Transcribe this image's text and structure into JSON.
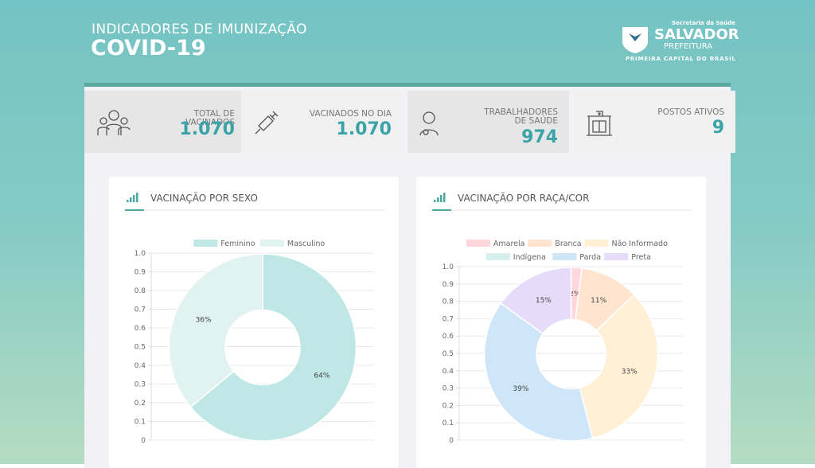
{
  "header": {
    "title": "INDICADORES DE IMUNIZAÇÃO",
    "subtitle": "COVID-19"
  },
  "logo": {
    "department": "Secretaria da Saúde",
    "city": "SALVADOR",
    "office": "PREFEITURA",
    "tagline": "PRIMEIRA CAPITAL DO BRASIL"
  },
  "cards": [
    {
      "label": "TOTAL DE VACINADOS",
      "value": "1.070"
    },
    {
      "label": "VACINADOS NO DIA",
      "value": "1.070"
    },
    {
      "label": "TRABALHADORES DE SAÚDE",
      "value": "974"
    },
    {
      "label": "POSTOS ATIVOS",
      "value": "9"
    }
  ],
  "chart_data": [
    {
      "type": "doughnut",
      "title": "VACINAÇÃO POR SEXO",
      "categories": [
        "Feminino",
        "Masculino"
      ],
      "values": [
        64,
        36
      ],
      "value_labels": [
        "64%",
        "36%"
      ],
      "colors": [
        "#bfe7e5",
        "#e1f3f1"
      ],
      "ylim": [
        0,
        1
      ],
      "yticks": [
        0,
        0.1,
        0.2,
        0.3,
        0.4,
        0.5,
        0.6,
        0.7,
        0.8,
        0.9,
        {
          "value": 1,
          "label": "1.0"
        }
      ],
      "grid": true
    },
    {
      "type": "doughnut",
      "title": "VACINAÇÃO POR RAÇA/COR",
      "categories": [
        "Amarela",
        "Branca",
        "Não Informado",
        "Indígena",
        "Parda",
        "Preta"
      ],
      "values": [
        2,
        11,
        33,
        0,
        39,
        15
      ],
      "value_labels": [
        "2%",
        "11%",
        "33%",
        null,
        "39%",
        "15%"
      ],
      "colors": [
        "#ffd7dd",
        "#ffe5cf",
        "#fff0d6",
        "#d6f0ee",
        "#cfe6f9",
        "#e6dcfa"
      ],
      "ylim": [
        0,
        1
      ],
      "yticks": [
        0,
        0.1,
        0.2,
        0.3,
        0.4,
        0.5,
        0.6,
        0.7,
        0.8,
        0.9,
        {
          "value": 1,
          "label": "1.0"
        }
      ],
      "grid": true
    }
  ]
}
